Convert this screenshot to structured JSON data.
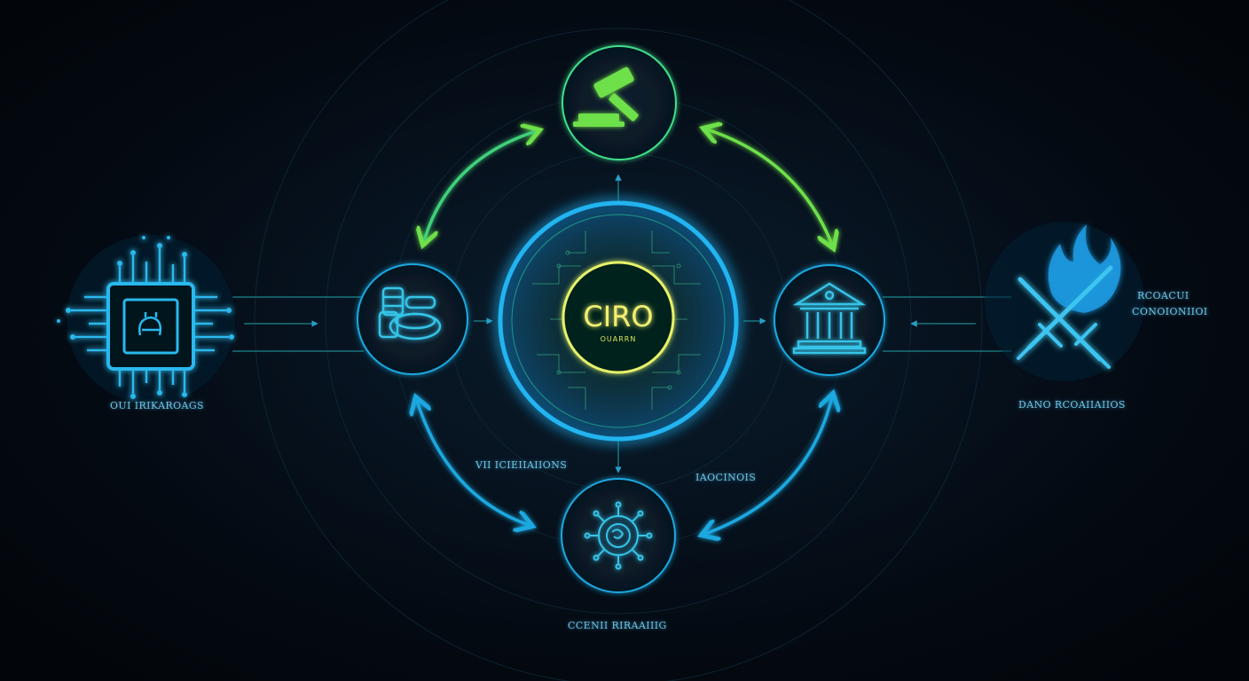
{
  "colors": {
    "background": "#03070c",
    "green_accent": "#6ee04a",
    "cyan_accent": "#1ea8e0",
    "core_ring": "#e6f26a",
    "label_text": "#6fc6e6"
  },
  "center": {
    "title": "CIRO",
    "subtitle": "OUARRN"
  },
  "nodes": [
    {
      "id": "top",
      "icon": "gavel-icon"
    },
    {
      "id": "left",
      "icon": "coin-stack-icon"
    },
    {
      "id": "right",
      "icon": "courthouse-icon"
    },
    {
      "id": "bottom",
      "icon": "virus-icon"
    },
    {
      "id": "far-left",
      "icon": "microchip-icon"
    },
    {
      "id": "far-right",
      "icon": "crossed-swords-icon"
    }
  ],
  "labels": {
    "far_left": "OUI IRIKAROAGS",
    "far_right_top": "RCOACUI",
    "far_right_sub": "CONOIONIIOI",
    "far_right_bottom": "DANO RCOAIIAIIOS",
    "bottom_left_arc": "VII ICIEIIAIIONS",
    "bottom_right_arc": "IAOCINOIS",
    "bottom_node": "CCENII RIRAAIIIG"
  }
}
